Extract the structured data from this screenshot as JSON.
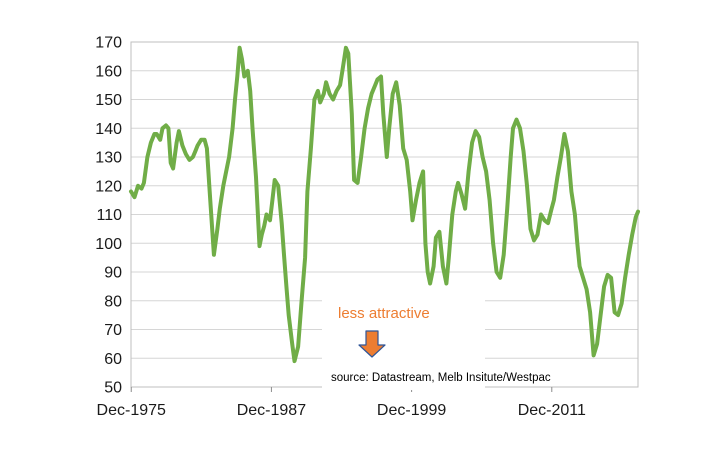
{
  "chart_data": {
    "type": "line",
    "title": "",
    "xlabel": "",
    "ylabel": "",
    "ylim": [
      50,
      170
    ],
    "y_ticks": [
      50,
      60,
      70,
      80,
      90,
      100,
      110,
      120,
      130,
      140,
      150,
      160,
      170
    ],
    "x_range": [
      1975.9,
      2019.3
    ],
    "x_ticks": [
      {
        "label": "Dec-1975",
        "x": 1975.92
      },
      {
        "label": "Dec-1987",
        "x": 1987.92
      },
      {
        "label": "Dec-1999",
        "x": 1999.92
      },
      {
        "label": "Dec-2011",
        "x": 2011.92
      }
    ],
    "grid": true,
    "series": [
      {
        "color": "#70ad47",
        "x": [
          1975.9,
          1976.2,
          1976.5,
          1976.8,
          1977.0,
          1977.3,
          1977.6,
          1977.9,
          1978.1,
          1978.4,
          1978.6,
          1978.9,
          1979.1,
          1979.3,
          1979.5,
          1979.8,
          1980.0,
          1980.3,
          1980.6,
          1980.9,
          1981.2,
          1981.4,
          1981.6,
          1981.9,
          1982.2,
          1982.4,
          1982.6,
          1982.8,
          1983.0,
          1983.3,
          1983.5,
          1983.8,
          1984.0,
          1984.3,
          1984.6,
          1984.8,
          1985.0,
          1985.2,
          1985.4,
          1985.6,
          1985.9,
          1986.1,
          1986.3,
          1986.6,
          1986.9,
          1987.1,
          1987.3,
          1987.5,
          1987.8,
          1988.0,
          1988.2,
          1988.5,
          1988.8,
          1989.0,
          1989.2,
          1989.4,
          1989.7,
          1989.9,
          1990.2,
          1990.5,
          1990.8,
          1991.0,
          1991.3,
          1991.6,
          1991.9,
          1992.1,
          1992.4,
          1992.6,
          1992.9,
          1993.2,
          1993.5,
          1993.8,
          1994.0,
          1994.3,
          1994.5,
          1994.8,
          1995.0,
          1995.3,
          1995.6,
          1995.9,
          1996.2,
          1996.5,
          1996.8,
          1997.0,
          1997.3,
          1997.5,
          1997.8,
          1998.0,
          1998.3,
          1998.6,
          1998.9,
          1999.2,
          1999.5,
          1999.8,
          2000.0,
          2000.3,
          2000.6,
          2000.9,
          2001.1,
          2001.3,
          2001.5,
          2001.8,
          2002.0,
          2002.3,
          2002.6,
          2002.9,
          2003.1,
          2003.4,
          2003.7,
          2003.9,
          2004.2,
          2004.5,
          2004.8,
          2005.1,
          2005.4,
          2005.7,
          2006.0,
          2006.3,
          2006.6,
          2006.9,
          2007.2,
          2007.5,
          2007.8,
          2008.1,
          2008.4,
          2008.6,
          2008.9,
          2009.2,
          2009.5,
          2009.8,
          2010.1,
          2010.4,
          2010.7,
          2011.0,
          2011.3,
          2011.6,
          2011.9,
          2012.1,
          2012.4,
          2012.7,
          2013.0,
          2013.3,
          2013.6,
          2013.9,
          2014.1,
          2014.3,
          2014.6,
          2014.9,
          2015.2,
          2015.5,
          2015.8,
          2016.1,
          2016.4,
          2016.7,
          2017.0,
          2017.3,
          2017.6,
          2017.9,
          2018.2,
          2018.5,
          2018.8,
          2019.1,
          2019.3
        ],
        "y": [
          118,
          116,
          120,
          119,
          121,
          130,
          135,
          138,
          138,
          136,
          140,
          141,
          140,
          128,
          126,
          135,
          139,
          134,
          131,
          129,
          130,
          132,
          134,
          136,
          136,
          133,
          120,
          108,
          96,
          105,
          112,
          120,
          124,
          130,
          140,
          150,
          158,
          168,
          164,
          158,
          160,
          153,
          140,
          123,
          99,
          103,
          106,
          110,
          108,
          115,
          122,
          120,
          107,
          96,
          85,
          75,
          65,
          59,
          64,
          80,
          95,
          118,
          133,
          150,
          153,
          149,
          152,
          156,
          152,
          150,
          153,
          155,
          160,
          168,
          166,
          145,
          122,
          121,
          130,
          140,
          147,
          152,
          155,
          157,
          158,
          145,
          130,
          140,
          152,
          156,
          148,
          133,
          129,
          118,
          108,
          115,
          121,
          125,
          100,
          90,
          86,
          92,
          102,
          104,
          92,
          86,
          95,
          110,
          118,
          121,
          117,
          112,
          125,
          135,
          139,
          137,
          130,
          125,
          115,
          100,
          90,
          88,
          96,
          112,
          130,
          140,
          143,
          140,
          132,
          120,
          105,
          101,
          103,
          110,
          108,
          107,
          112,
          115,
          123,
          130,
          138,
          132,
          118,
          110,
          100,
          92,
          88,
          84,
          76,
          61,
          65,
          75,
          85,
          89,
          88,
          76,
          75,
          79,
          88,
          96,
          103,
          109,
          111
        ]
      }
    ]
  },
  "annotations": {
    "less_attractive": "less attractive",
    "source": "source:  Datastream, Melb Insitute/Westpac"
  },
  "colors": {
    "series": "#70ad47",
    "annotation_text": "#ed7d31",
    "arrow_fill": "#ed7d31",
    "arrow_stroke": "#2f5597"
  },
  "icons": {
    "arrow": "down-arrow-icon"
  }
}
